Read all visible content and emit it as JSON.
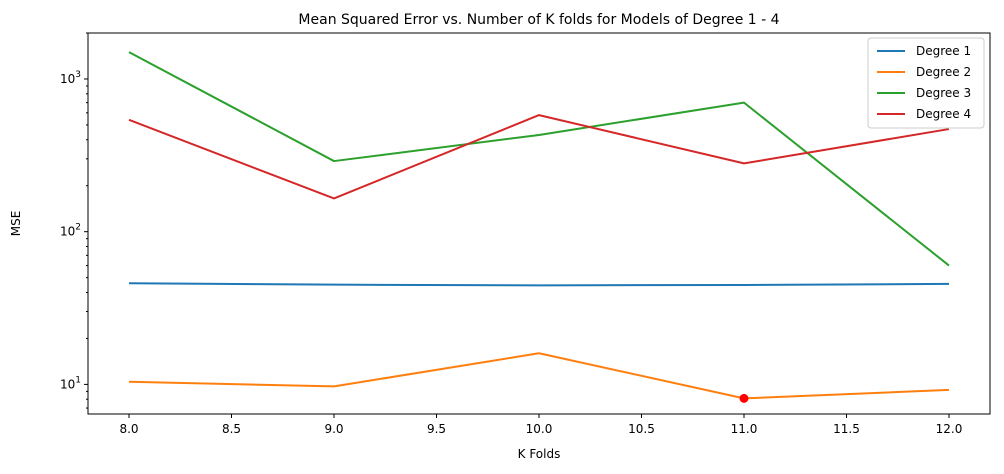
{
  "chart_data": {
    "type": "line",
    "title": "Mean Squared Error vs. Number of K folds for Models of Degree 1 - 4",
    "xlabel": "K Folds",
    "ylabel": "MSE",
    "yscale": "log",
    "xlim": [
      7.8,
      12.2
    ],
    "ylim": [
      6.4,
      2000
    ],
    "grid": false,
    "legend_position": "top-right",
    "x": [
      8,
      9,
      10,
      11,
      12
    ],
    "x_ticks": [
      8.0,
      8.5,
      9.0,
      9.5,
      10.0,
      10.5,
      11.0,
      11.5,
      12.0
    ],
    "x_tick_labels": [
      "8.0",
      "8.5",
      "9.0",
      "9.5",
      "10.0",
      "10.5",
      "11.0",
      "11.5",
      "12.0"
    ],
    "y_ticks": [
      {
        "value": 10,
        "base": "10",
        "exp": "1"
      },
      {
        "value": 100,
        "base": "10",
        "exp": "2"
      },
      {
        "value": 1000,
        "base": "10",
        "exp": "3"
      }
    ],
    "series": [
      {
        "name": "Degree 1",
        "color": "#1f77b4",
        "values": [
          46,
          45,
          44.5,
          44.8,
          45.5
        ]
      },
      {
        "name": "Degree 2",
        "color": "#ff7f0e",
        "values": [
          10.4,
          9.7,
          16,
          8.1,
          9.2
        ]
      },
      {
        "name": "Degree 3",
        "color": "#2ca02c",
        "values": [
          1500,
          290,
          430,
          700,
          60
        ]
      },
      {
        "name": "Degree 4",
        "color": "#d62728",
        "values": [
          540,
          165,
          580,
          280,
          470
        ]
      }
    ],
    "highlight_point": {
      "x": 11,
      "y": 8.1,
      "color": "#ff0000"
    }
  }
}
